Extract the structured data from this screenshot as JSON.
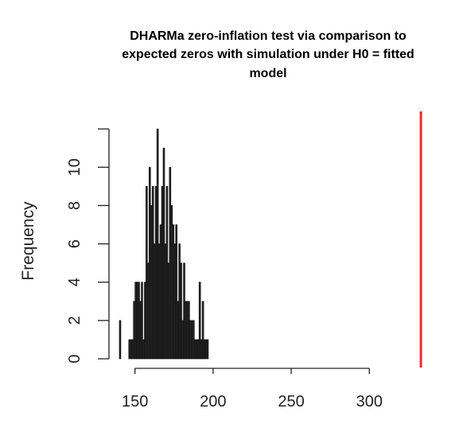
{
  "chart_data": {
    "type": "bar",
    "title_lines": [
      "DHARMa zero-inflation test via comparison to",
      "expected zeros with simulation under H0 = fitted",
      "model"
    ],
    "xlabel": "",
    "ylabel": "Frequency",
    "xlim": [
      140,
      336
    ],
    "ylim": [
      0,
      13
    ],
    "x_ticks": [
      150,
      200,
      250,
      300
    ],
    "y_ticks": [
      0,
      2,
      4,
      6,
      8,
      10
    ],
    "bin_width": 1,
    "observed_value": 333,
    "observed_color": "#ee2a24",
    "bins": [
      140,
      141,
      142,
      143,
      144,
      145,
      146,
      147,
      148,
      149,
      150,
      151,
      152,
      153,
      154,
      155,
      156,
      157,
      158,
      159,
      160,
      161,
      162,
      163,
      164,
      165,
      166,
      167,
      168,
      169,
      170,
      171,
      172,
      173,
      174,
      175,
      176,
      177,
      178,
      179,
      180,
      181,
      182,
      183,
      184,
      185,
      186,
      187,
      188,
      189,
      190,
      191,
      192,
      193,
      194,
      195,
      196
    ],
    "counts": [
      2,
      0,
      0,
      0,
      0,
      0,
      1,
      1,
      1,
      3,
      4,
      4,
      4,
      3,
      4,
      1,
      4,
      9,
      5,
      10,
      8,
      9,
      6,
      9,
      12,
      6,
      7,
      9,
      11,
      6,
      9,
      5,
      10,
      8,
      7,
      6,
      7,
      3,
      6,
      5,
      2,
      5,
      3,
      3,
      3,
      2,
      2,
      2,
      1,
      1,
      1,
      4,
      1,
      3,
      1,
      1,
      1
    ]
  }
}
